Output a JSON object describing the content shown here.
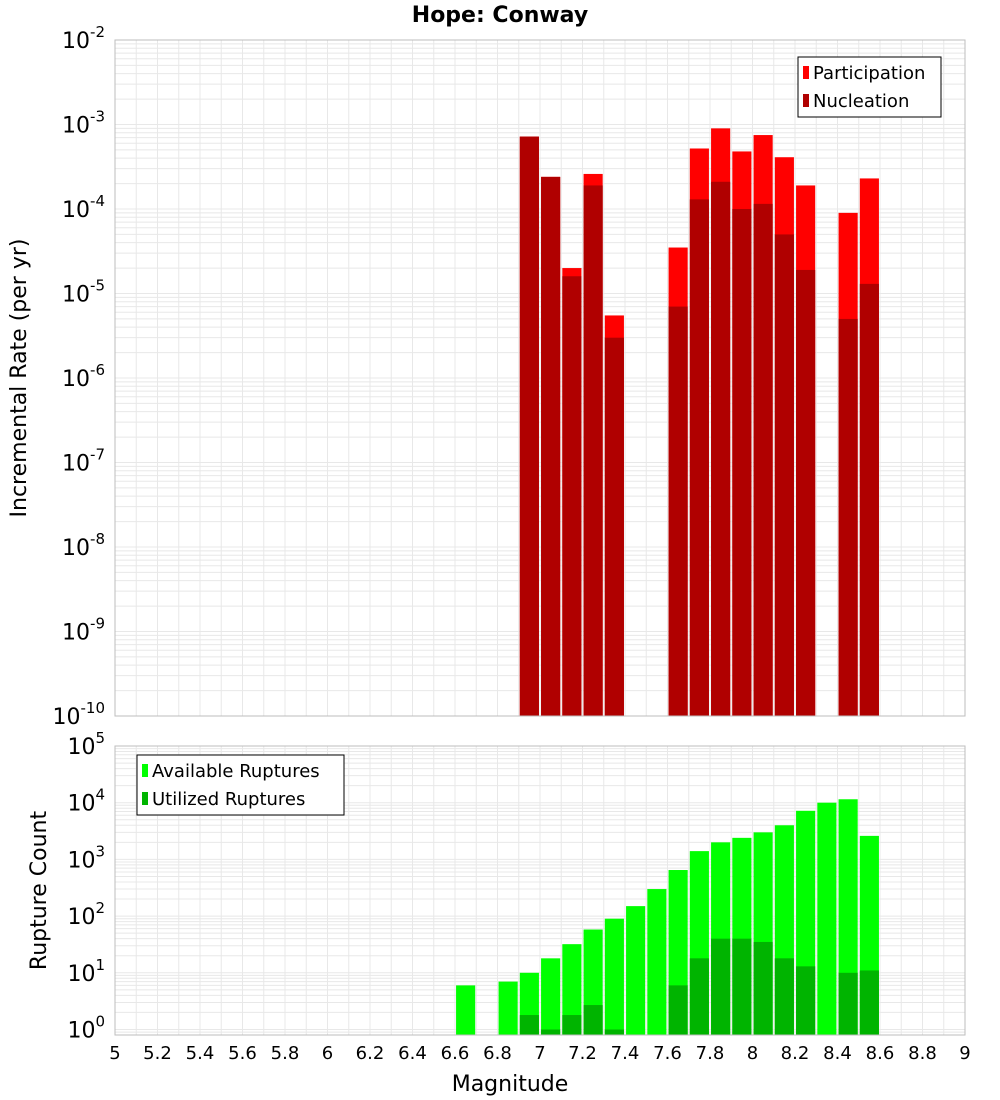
{
  "chart_data": [
    {
      "type": "bar",
      "title": "Hope: Conway",
      "xlabel": "",
      "ylabel": "Incremental Rate (per yr)",
      "yscale": "log",
      "xlim": [
        5,
        9
      ],
      "ylim": [
        1e-10,
        0.01
      ],
      "y_tick_exponents": [
        -10,
        -9,
        -8,
        -7,
        -6,
        -5,
        -4,
        -3,
        -2
      ],
      "grid": true,
      "legend_position": "top-right",
      "bar_width": 0.09,
      "series": [
        {
          "name": "Participation",
          "color": "#ff0000",
          "x": [
            6.95,
            7.05,
            7.15,
            7.25,
            7.35,
            7.65,
            7.75,
            7.85,
            7.95,
            8.05,
            8.15,
            8.25,
            8.45,
            8.55
          ],
          "values": [
            0.00072,
            0.00024,
            2e-05,
            0.00026,
            5.5e-06,
            3.5e-05,
            0.00052,
            0.0009,
            0.00048,
            0.00075,
            0.00041,
            0.00019,
            9e-05,
            0.00023
          ]
        },
        {
          "name": "Nucleation",
          "color": "#b00000",
          "x": [
            6.95,
            7.05,
            7.15,
            7.25,
            7.35,
            7.65,
            7.75,
            7.85,
            7.95,
            8.05,
            8.15,
            8.25,
            8.45,
            8.55
          ],
          "values": [
            0.00072,
            0.00024,
            1.6e-05,
            0.00019,
            3e-06,
            7e-06,
            0.00013,
            0.00021,
            0.0001,
            0.000115,
            5e-05,
            1.9e-05,
            5e-06,
            1.3e-05
          ]
        }
      ]
    },
    {
      "type": "bar",
      "title": "",
      "xlabel": "Magnitude",
      "ylabel": "Rupture Count",
      "yscale": "log",
      "xlim": [
        5,
        9
      ],
      "ylim": [
        0.8,
        100000.0
      ],
      "y_tick_exponents": [
        0,
        1,
        2,
        3,
        4,
        5
      ],
      "x_ticks": [
        "5",
        "5.2",
        "5.4",
        "5.6",
        "5.8",
        "6",
        "6.2",
        "6.4",
        "6.6",
        "6.8",
        "7",
        "7.2",
        "7.4",
        "7.6",
        "7.8",
        "8",
        "8.2",
        "8.4",
        "8.6",
        "8.8",
        "9"
      ],
      "grid": true,
      "legend_position": "top-left",
      "bar_width": 0.09,
      "series": [
        {
          "name": "Available Ruptures",
          "color": "#00ff00",
          "x": [
            6.65,
            6.85,
            6.95,
            7.05,
            7.15,
            7.25,
            7.35,
            7.45,
            7.55,
            7.65,
            7.75,
            7.85,
            7.95,
            8.05,
            8.15,
            8.25,
            8.35,
            8.45,
            8.55
          ],
          "values": [
            6,
            7,
            10,
            18,
            32,
            58,
            90,
            150,
            300,
            650,
            1400,
            2000,
            2400,
            3000,
            4000,
            7200,
            10000,
            11500,
            2600
          ]
        },
        {
          "name": "Utilized Ruptures",
          "color": "#00b400",
          "x": [
            6.95,
            7.05,
            7.15,
            7.25,
            7.35,
            7.65,
            7.75,
            7.85,
            7.95,
            8.05,
            8.15,
            8.25,
            8.45,
            8.55
          ],
          "values": [
            1.8,
            1.0,
            1.8,
            2.7,
            1.0,
            6,
            18,
            40,
            40,
            35,
            18,
            13,
            10,
            11
          ]
        }
      ]
    }
  ]
}
